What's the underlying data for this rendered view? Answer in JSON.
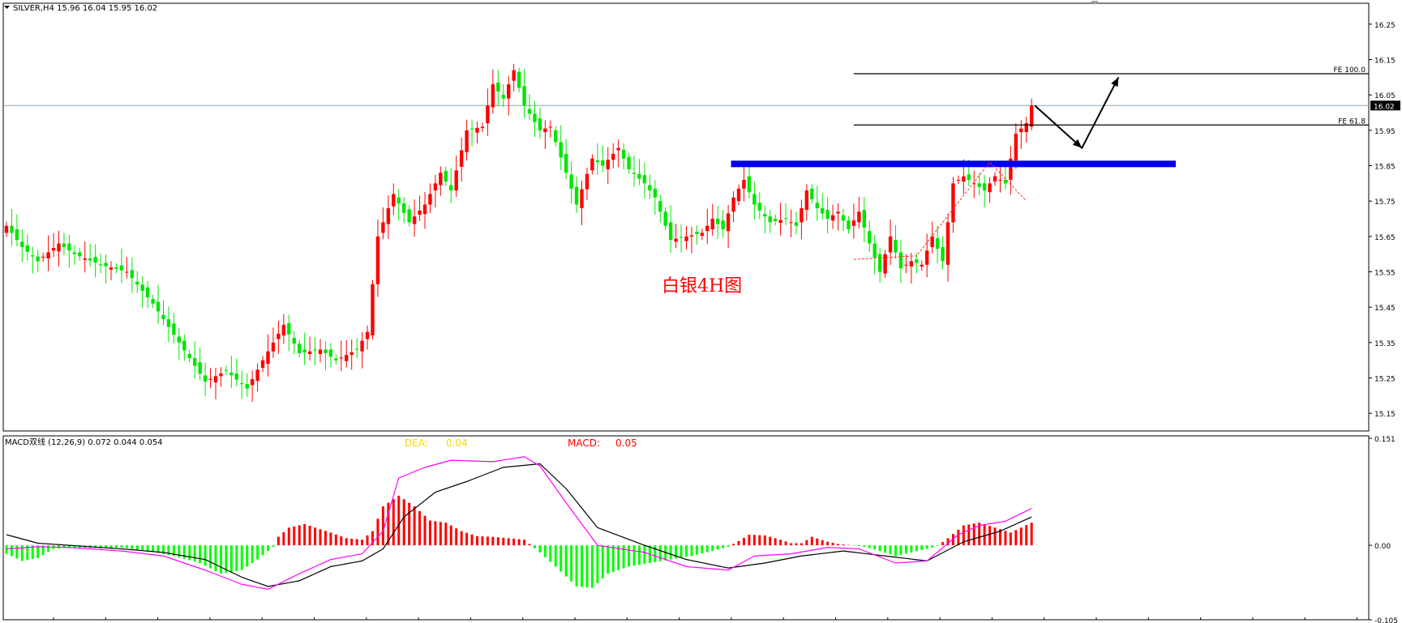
{
  "chart_data": [
    {
      "type": "candlestick",
      "header": "SILVER,H4  15.96 16.04 15.95 16.02",
      "symbol": "SILVER,H4",
      "last_ohlc": {
        "open": 15.96,
        "high": 16.04,
        "low": 15.95,
        "close": 16.02
      },
      "title": "白银4H图",
      "ylim": [
        15.1,
        16.3
      ],
      "y_ticks": [
        15.15,
        15.25,
        15.35,
        15.45,
        15.55,
        15.65,
        15.75,
        15.85,
        15.95,
        16.05,
        16.15,
        16.25
      ],
      "y_tick_labels": [
        "15.15",
        "15.25",
        "15.35",
        "15.45",
        "15.55",
        "15.65",
        "15.75",
        "15.85",
        "15.95",
        "16.05",
        "16.15",
        "16.25"
      ],
      "current_price": 16.02,
      "current_price_label": "16.02",
      "up_color": "#ff0000",
      "down_color": "#00e600",
      "close_anchors": [
        [
          0,
          15.68
        ],
        [
          3,
          15.62
        ],
        [
          6,
          15.58
        ],
        [
          10,
          15.63
        ],
        [
          13,
          15.6
        ],
        [
          18,
          15.57
        ],
        [
          23,
          15.55
        ],
        [
          28,
          15.46
        ],
        [
          33,
          15.35
        ],
        [
          38,
          15.24
        ],
        [
          42,
          15.27
        ],
        [
          46,
          15.22
        ],
        [
          49,
          15.3
        ],
        [
          53,
          15.4
        ],
        [
          56,
          15.32
        ],
        [
          60,
          15.33
        ],
        [
          63,
          15.3
        ],
        [
          67,
          15.33
        ],
        [
          69,
          15.38
        ],
        [
          71,
          15.65
        ],
        [
          74,
          15.77
        ],
        [
          77,
          15.69
        ],
        [
          80,
          15.74
        ],
        [
          83,
          15.83
        ],
        [
          85,
          15.78
        ],
        [
          88,
          15.95
        ],
        [
          91,
          15.96
        ],
        [
          93,
          16.08
        ],
        [
          95,
          16.04
        ],
        [
          97,
          16.12
        ],
        [
          99,
          16.02
        ],
        [
          102,
          15.95
        ],
        [
          104,
          15.96
        ],
        [
          107,
          15.83
        ],
        [
          109,
          15.74
        ],
        [
          112,
          15.87
        ],
        [
          114,
          15.85
        ],
        [
          117,
          15.9
        ],
        [
          119,
          15.84
        ],
        [
          122,
          15.8
        ],
        [
          124,
          15.76
        ],
        [
          127,
          15.64
        ],
        [
          130,
          15.65
        ],
        [
          133,
          15.66
        ],
        [
          135,
          15.7
        ],
        [
          137,
          15.67
        ],
        [
          139,
          15.76
        ],
        [
          141,
          15.81
        ],
        [
          143,
          15.74
        ],
        [
          146,
          15.69
        ],
        [
          149,
          15.7
        ],
        [
          151,
          15.68
        ],
        [
          153,
          15.78
        ],
        [
          155,
          15.73
        ],
        [
          157,
          15.7
        ],
        [
          159,
          15.72
        ],
        [
          161,
          15.67
        ],
        [
          163,
          15.72
        ],
        [
          165,
          15.63
        ],
        [
          167,
          15.55
        ],
        [
          169,
          15.65
        ],
        [
          171,
          15.56
        ],
        [
          173,
          15.58
        ],
        [
          175,
          15.57
        ],
        [
          177,
          15.65
        ],
        [
          179,
          15.58
        ],
        [
          181,
          15.8
        ],
        [
          183,
          15.82
        ],
        [
          185,
          15.8
        ],
        [
          187,
          15.78
        ],
        [
          189,
          15.82
        ],
        [
          191,
          15.8
        ],
        [
          193,
          15.94
        ],
        [
          195,
          15.97
        ],
        [
          196,
          16.02
        ]
      ],
      "levels": [
        {
          "value": 16.11,
          "label": "FE 100.0"
        },
        {
          "value": 15.965,
          "label": "FE 61.8"
        }
      ],
      "zone": {
        "value": 15.855,
        "color": "#0000ee"
      },
      "projection": [
        [
          196,
          16.02
        ],
        [
          205,
          15.9
        ],
        [
          212,
          16.1
        ]
      ]
    },
    {
      "type": "bar+line",
      "header": "MACD双线 (12,26,9) 0.072 0.044 0.054",
      "dea_label": "DEA:",
      "dea_value": "0.04",
      "macd_label": "MACD:",
      "macd_value": "0.05",
      "ylim": [
        -0.105,
        0.151
      ],
      "y_ticks": [
        0.151,
        0.0,
        -0.105
      ],
      "y_tick_labels": [
        "0.151",
        "0.00",
        "-0.105"
      ],
      "dea_color": "#ffd700",
      "macd_color": "#ff0000",
      "hist_up_color": "#ff0000",
      "hist_down_color": "#00ff00",
      "fast_line_color": "#ff00ff",
      "slow_line_color": "#000000",
      "hist_anchors": [
        [
          0,
          -0.012
        ],
        [
          3,
          -0.022
        ],
        [
          6,
          -0.018
        ],
        [
          9,
          -0.005
        ],
        [
          12,
          -0.003
        ],
        [
          18,
          -0.004
        ],
        [
          22,
          -0.003
        ],
        [
          27,
          -0.008
        ],
        [
          32,
          -0.015
        ],
        [
          37,
          -0.025
        ],
        [
          41,
          -0.04
        ],
        [
          45,
          -0.035
        ],
        [
          48,
          -0.02
        ],
        [
          51,
          -0.002
        ],
        [
          52,
          0.012
        ],
        [
          54,
          0.025
        ],
        [
          57,
          0.03
        ],
        [
          59,
          0.025
        ],
        [
          62,
          0.018
        ],
        [
          65,
          0.01
        ],
        [
          68,
          0.008
        ],
        [
          70,
          0.02
        ],
        [
          72,
          0.055
        ],
        [
          75,
          0.07
        ],
        [
          78,
          0.055
        ],
        [
          81,
          0.035
        ],
        [
          84,
          0.032
        ],
        [
          87,
          0.02
        ],
        [
          90,
          0.013
        ],
        [
          93,
          0.012
        ],
        [
          96,
          0.01
        ],
        [
          99,
          0.008
        ],
        [
          102,
          -0.01
        ],
        [
          105,
          -0.03
        ],
        [
          109,
          -0.058
        ],
        [
          112,
          -0.06
        ],
        [
          115,
          -0.04
        ],
        [
          119,
          -0.03
        ],
        [
          123,
          -0.025
        ],
        [
          127,
          -0.02
        ],
        [
          131,
          -0.015
        ],
        [
          135,
          -0.008
        ],
        [
          138,
          -0.002
        ],
        [
          140,
          0.006
        ],
        [
          142,
          0.015
        ],
        [
          145,
          0.014
        ],
        [
          148,
          0.008
        ],
        [
          150,
          0.003
        ],
        [
          152,
          0.003
        ],
        [
          154,
          0.012
        ],
        [
          157,
          0.005
        ],
        [
          159,
          0.002
        ],
        [
          161,
          0.0005
        ],
        [
          164,
          -0.002
        ],
        [
          167,
          -0.008
        ],
        [
          170,
          -0.015
        ],
        [
          173,
          -0.01
        ],
        [
          176,
          -0.005
        ],
        [
          178,
          -0.001
        ],
        [
          180,
          0.01
        ],
        [
          183,
          0.028
        ],
        [
          186,
          0.032
        ],
        [
          189,
          0.025
        ],
        [
          192,
          0.018
        ],
        [
          194,
          0.025
        ],
        [
          196,
          0.032
        ]
      ],
      "fast_line_anchors": [
        [
          0,
          -0.005
        ],
        [
          6,
          -0.002
        ],
        [
          12,
          -0.003
        ],
        [
          22,
          -0.008
        ],
        [
          30,
          -0.015
        ],
        [
          38,
          -0.035
        ],
        [
          45,
          -0.055
        ],
        [
          50,
          -0.062
        ],
        [
          56,
          -0.04
        ],
        [
          62,
          -0.02
        ],
        [
          68,
          -0.012
        ],
        [
          72,
          0.02
        ],
        [
          75,
          0.095
        ],
        [
          80,
          0.11
        ],
        [
          85,
          0.12
        ],
        [
          93,
          0.118
        ],
        [
          99,
          0.125
        ],
        [
          102,
          0.112
        ],
        [
          107,
          0.06
        ],
        [
          113,
          0.0
        ],
        [
          122,
          -0.01
        ],
        [
          130,
          -0.03
        ],
        [
          138,
          -0.035
        ],
        [
          143,
          -0.015
        ],
        [
          150,
          -0.012
        ],
        [
          157,
          -0.003
        ],
        [
          163,
          -0.005
        ],
        [
          170,
          -0.025
        ],
        [
          176,
          -0.022
        ],
        [
          182,
          0.015
        ],
        [
          186,
          0.028
        ],
        [
          191,
          0.034
        ],
        [
          196,
          0.052
        ]
      ],
      "slow_line_anchors": [
        [
          0,
          0.015
        ],
        [
          6,
          0.003
        ],
        [
          12,
          0.0
        ],
        [
          22,
          -0.005
        ],
        [
          30,
          -0.01
        ],
        [
          38,
          -0.02
        ],
        [
          45,
          -0.045
        ],
        [
          50,
          -0.058
        ],
        [
          56,
          -0.05
        ],
        [
          62,
          -0.03
        ],
        [
          68,
          -0.022
        ],
        [
          72,
          -0.005
        ],
        [
          76,
          0.04
        ],
        [
          82,
          0.075
        ],
        [
          88,
          0.09
        ],
        [
          95,
          0.11
        ],
        [
          102,
          0.115
        ],
        [
          107,
          0.08
        ],
        [
          113,
          0.025
        ],
        [
          122,
          0.0
        ],
        [
          130,
          -0.02
        ],
        [
          138,
          -0.032
        ],
        [
          145,
          -0.025
        ],
        [
          152,
          -0.015
        ],
        [
          160,
          -0.008
        ],
        [
          168,
          -0.015
        ],
        [
          176,
          -0.022
        ],
        [
          183,
          0.005
        ],
        [
          190,
          0.02
        ],
        [
          196,
          0.04
        ]
      ]
    }
  ]
}
